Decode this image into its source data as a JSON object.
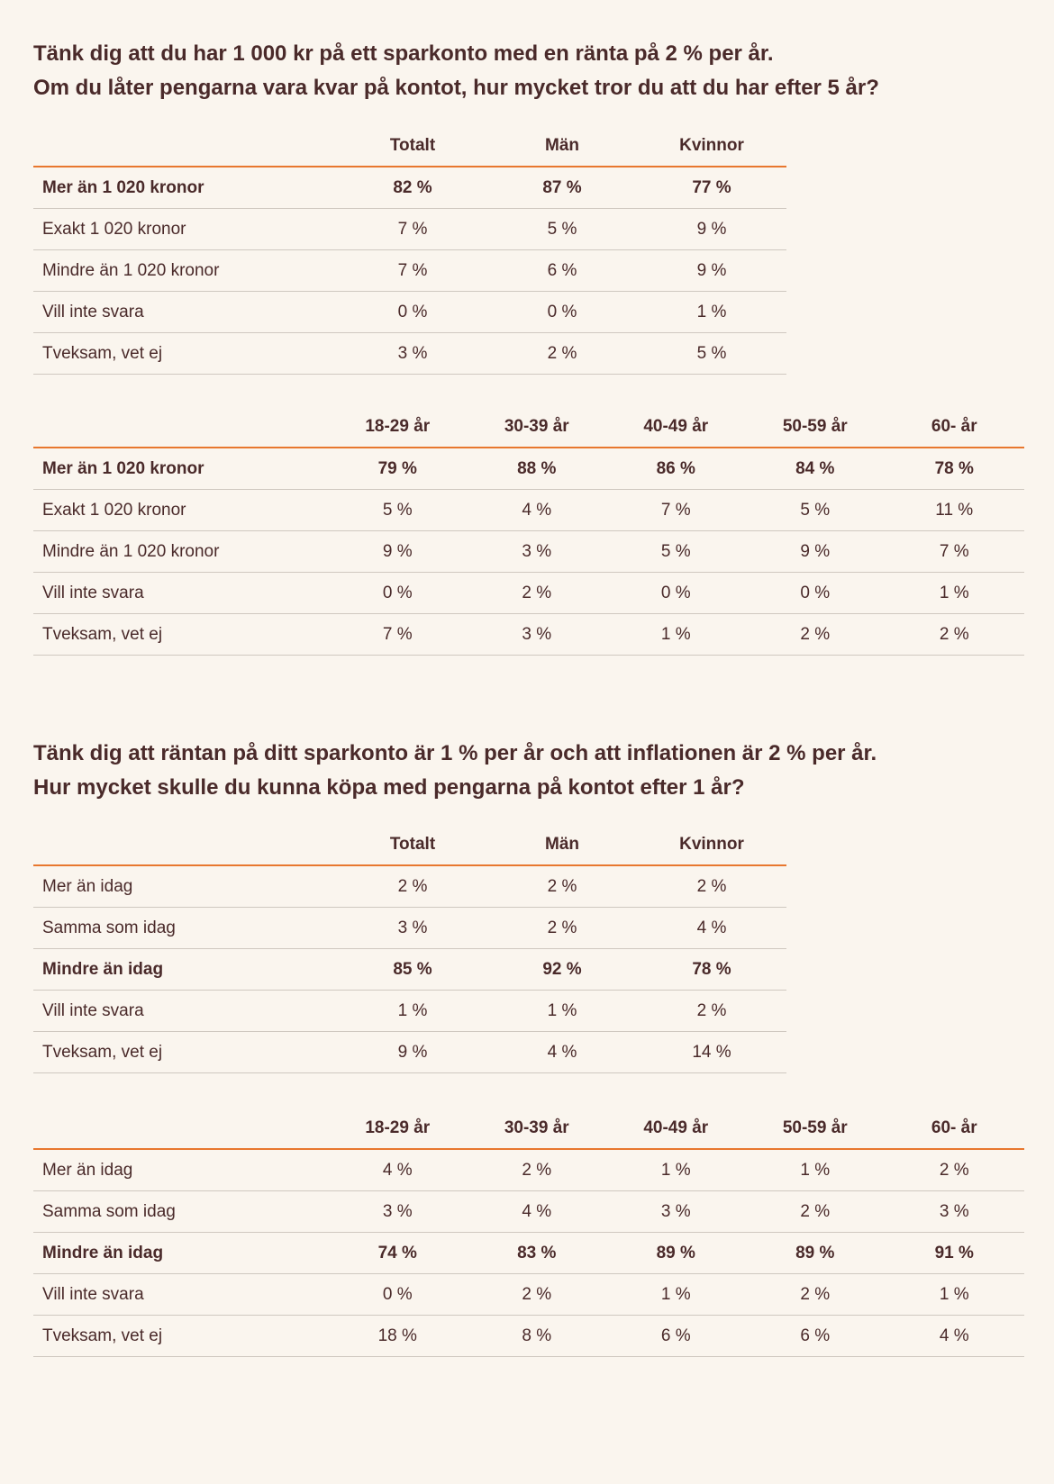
{
  "sections": [
    {
      "title": [
        "Tänk dig att du har 1 000 kr på ett sparkonto med en ränta på 2 % per år.",
        "Om du låter pengarna vara kvar på kontot, hur mycket tror du att du har efter 5 år?"
      ],
      "tables": [
        {
          "headers": [
            "Totalt",
            "Män",
            "Kvinnor"
          ],
          "rows": [
            {
              "label": "Mer än 1 020 kronor",
              "bold": true,
              "values": [
                "82 %",
                "87 %",
                "77 %"
              ]
            },
            {
              "label": "Exakt 1 020 kronor",
              "bold": false,
              "values": [
                "7 %",
                "5 %",
                "9 %"
              ]
            },
            {
              "label": "Mindre än 1 020 kronor",
              "bold": false,
              "values": [
                "7 %",
                "6 %",
                "9 %"
              ]
            },
            {
              "label": "Vill inte svara",
              "bold": false,
              "values": [
                "0 %",
                "0 %",
                "1 %"
              ]
            },
            {
              "label": "Tveksam, vet ej",
              "bold": false,
              "values": [
                "3 %",
                "2 %",
                "5 %"
              ]
            }
          ]
        },
        {
          "headers": [
            "18-29 år",
            "30-39 år",
            "40-49 år",
            "50-59 år",
            "60- år"
          ],
          "rows": [
            {
              "label": "Mer än 1 020 kronor",
              "bold": true,
              "values": [
                "79 %",
                "88 %",
                "86 %",
                "84 %",
                "78 %"
              ]
            },
            {
              "label": "Exakt 1 020 kronor",
              "bold": false,
              "values": [
                "5 %",
                "4 %",
                "7 %",
                "5 %",
                "11 %"
              ]
            },
            {
              "label": "Mindre än 1 020 kronor",
              "bold": false,
              "values": [
                "9 %",
                "3 %",
                "5 %",
                "9 %",
                "7 %"
              ]
            },
            {
              "label": "Vill inte svara",
              "bold": false,
              "values": [
                "0 %",
                "2 %",
                "0 %",
                "0 %",
                "1 %"
              ]
            },
            {
              "label": "Tveksam, vet ej",
              "bold": false,
              "values": [
                "7 %",
                "3 %",
                "1 %",
                "2 %",
                "2 %"
              ]
            }
          ]
        }
      ]
    },
    {
      "title": [
        "Tänk dig att räntan på ditt sparkonto är 1 % per år och att inflationen är 2 % per år.",
        "Hur mycket skulle du kunna köpa med pengarna på kontot efter 1 år?"
      ],
      "tables": [
        {
          "headers": [
            "Totalt",
            "Män",
            "Kvinnor"
          ],
          "rows": [
            {
              "label": "Mer än idag",
              "bold": false,
              "values": [
                "2 %",
                "2 %",
                "2 %"
              ]
            },
            {
              "label": "Samma som idag",
              "bold": false,
              "values": [
                "3 %",
                "2 %",
                "4 %"
              ]
            },
            {
              "label": "Mindre än idag",
              "bold": true,
              "values": [
                "85 %",
                "92 %",
                "78 %"
              ]
            },
            {
              "label": "Vill inte svara",
              "bold": false,
              "values": [
                "1 %",
                "1 %",
                "2 %"
              ]
            },
            {
              "label": "Tveksam, vet ej",
              "bold": false,
              "values": [
                "9 %",
                "4 %",
                "14 %"
              ]
            }
          ]
        },
        {
          "headers": [
            "18-29 år",
            "30-39 år",
            "40-49 år",
            "50-59 år",
            "60- år"
          ],
          "rows": [
            {
              "label": "Mer än idag",
              "bold": false,
              "values": [
                "4 %",
                "2 %",
                "1 %",
                "1 %",
                "2 %"
              ]
            },
            {
              "label": "Samma som idag",
              "bold": false,
              "values": [
                "3 %",
                "4 %",
                "3 %",
                "2 %",
                "3 %"
              ]
            },
            {
              "label": "Mindre än idag",
              "bold": true,
              "values": [
                "74 %",
                "83 %",
                "89 %",
                "89 %",
                "91 %"
              ]
            },
            {
              "label": "Vill inte svara",
              "bold": false,
              "values": [
                "0 %",
                "2 %",
                "1 %",
                "2 %",
                "1 %"
              ]
            },
            {
              "label": "Tveksam, vet ej",
              "bold": false,
              "values": [
                "18 %",
                "8 %",
                "6 %",
                "6 %",
                "4 %"
              ]
            }
          ]
        }
      ]
    }
  ]
}
